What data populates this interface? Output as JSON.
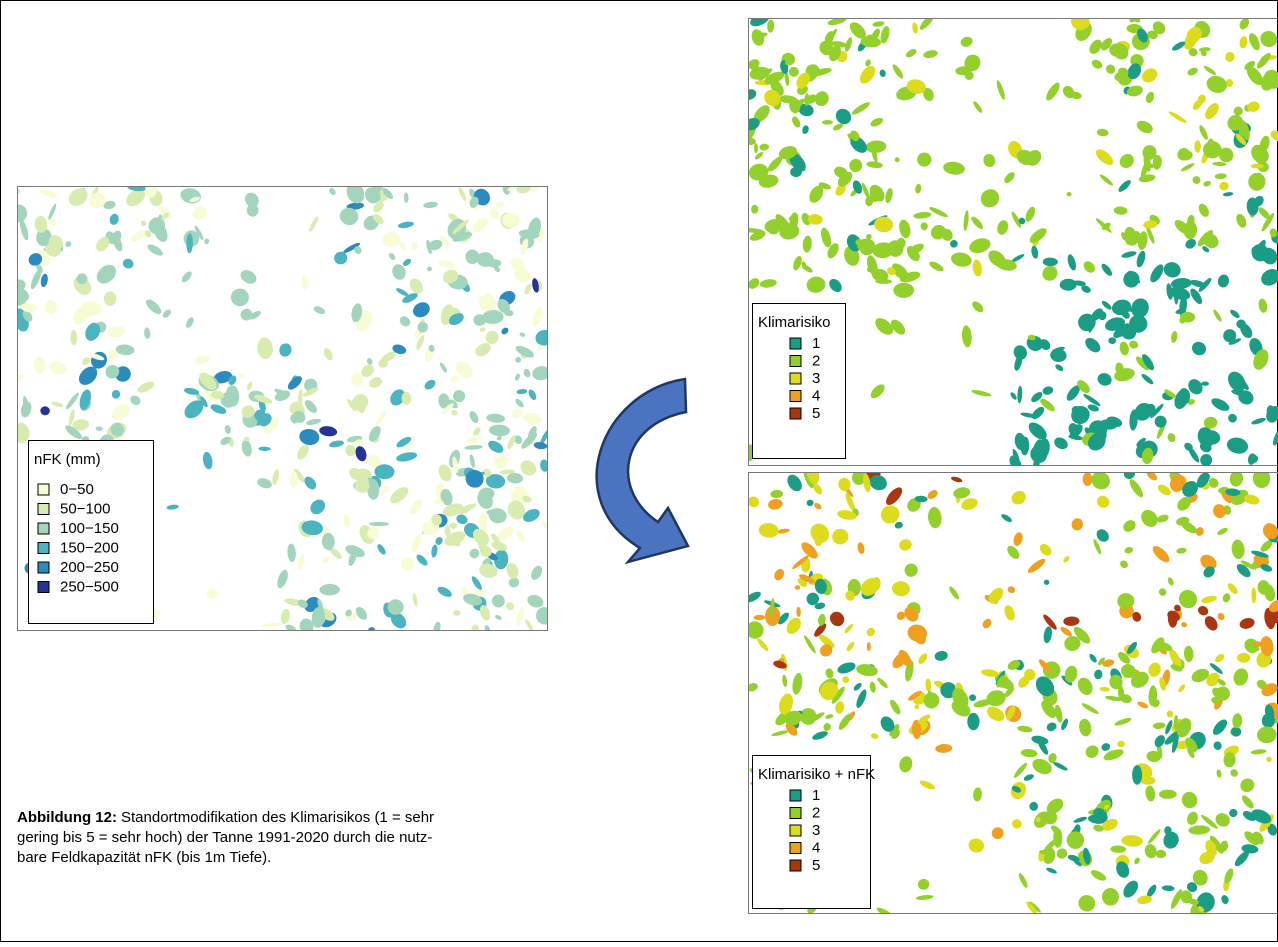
{
  "maps": [
    {
      "legend_title": "nFK (mm)",
      "legend": [
        {
          "label": "0−50",
          "color": "#f7fcd5"
        },
        {
          "label": "50−100",
          "color": "#d9ecb0"
        },
        {
          "label": "100−150",
          "color": "#a3d5bd"
        },
        {
          "label": "150−200",
          "color": "#4cb3c1"
        },
        {
          "label": "200−250",
          "color": "#2b8bbf"
        },
        {
          "label": "250−500",
          "color": "#253494"
        }
      ]
    },
    {
      "legend_title": "Klimarisiko",
      "legend": [
        {
          "label": "1",
          "color": "#1a9c85"
        },
        {
          "label": "2",
          "color": "#93d02b"
        },
        {
          "label": "3",
          "color": "#dcdc1c"
        },
        {
          "label": "4",
          "color": "#f0a020"
        },
        {
          "label": "5",
          "color": "#a8360f"
        }
      ]
    },
    {
      "legend_title": "Klimarisiko + nFK",
      "legend": [
        {
          "label": "1",
          "color": "#1a9c85"
        },
        {
          "label": "2",
          "color": "#93d02b"
        },
        {
          "label": "3",
          "color": "#dcdc1c"
        },
        {
          "label": "4",
          "color": "#f0a020"
        },
        {
          "label": "5",
          "color": "#a8360f"
        }
      ]
    }
  ],
  "caption": {
    "label": "Abbildung 12:",
    "lines": [
      "Standortmodifikation des Klimarisikos (1 = sehr",
      "gering bis 5 = sehr hoch) der Tanne 1991-2020 durch die nutz-",
      "bare Feldkapazität nFK (bis 1m Tiefe)."
    ]
  }
}
